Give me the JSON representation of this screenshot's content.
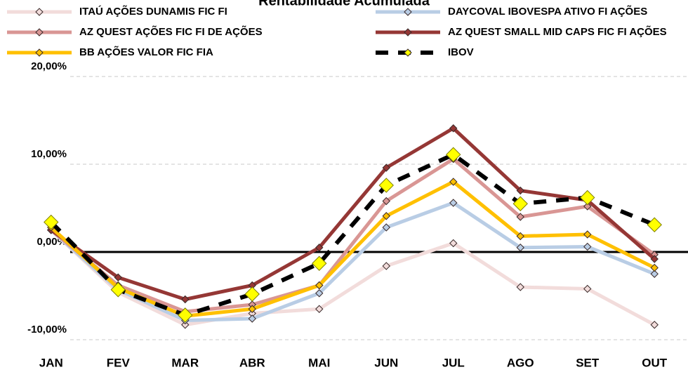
{
  "chart_data": {
    "type": "line",
    "title": "Rentabilidade Acumulada",
    "categories": [
      "JAN",
      "FEV",
      "MAR",
      "ABR",
      "MAI",
      "JUN",
      "JUL",
      "AGO",
      "SET",
      "OUT"
    ],
    "ylim": [
      -10,
      20
    ],
    "yticks": [
      {
        "value": -10,
        "label": "-10,00%"
      },
      {
        "value": 0,
        "label": "0,00%"
      },
      {
        "value": 10,
        "label": "10,00%"
      },
      {
        "value": 20,
        "label": "20,00%"
      }
    ],
    "grid": true,
    "series": [
      {
        "name": "ITAÚ AÇÕES DUNAMIS FIC FI",
        "color": "#f2dcdb",
        "values": [
          2.5,
          -4.6,
          -8.3,
          -7.0,
          -6.5,
          -1.6,
          1.0,
          -4.0,
          -4.2,
          -8.3
        ]
      },
      {
        "name": "DAYCOVAL IBOVESPA ATIVO FI AÇÕES",
        "color": "#b9cde5",
        "values": [
          2.5,
          -4.3,
          -7.8,
          -7.6,
          -4.7,
          2.8,
          5.6,
          0.5,
          0.6,
          -2.5
        ]
      },
      {
        "name": "AZ QUEST AÇÕES FIC FI DE AÇÕES",
        "color": "#d99694",
        "values": [
          2.5,
          -3.8,
          -6.8,
          -6.0,
          -3.8,
          5.8,
          10.6,
          4.0,
          5.2,
          -0.3
        ]
      },
      {
        "name": "AZ QUEST SMALL MID CAPS FIC FI AÇÕES",
        "color": "#953735",
        "values": [
          2.5,
          -2.9,
          -5.4,
          -3.8,
          0.5,
          9.6,
          14.1,
          7.0,
          5.9,
          -0.8
        ]
      },
      {
        "name": "BB AÇÕES VALOR FIC FIA",
        "color": "#ffc000",
        "values": [
          2.8,
          -4.1,
          -7.3,
          -6.5,
          -3.8,
          4.1,
          8.0,
          1.8,
          2.0,
          -1.8
        ]
      },
      {
        "name": "IBOV",
        "color": "#000000",
        "dashed": true,
        "marker_color": "#ffff00",
        "values": [
          3.4,
          -4.3,
          -7.2,
          -4.8,
          -1.3,
          7.6,
          11.1,
          5.5,
          6.2,
          3.1
        ]
      }
    ]
  }
}
